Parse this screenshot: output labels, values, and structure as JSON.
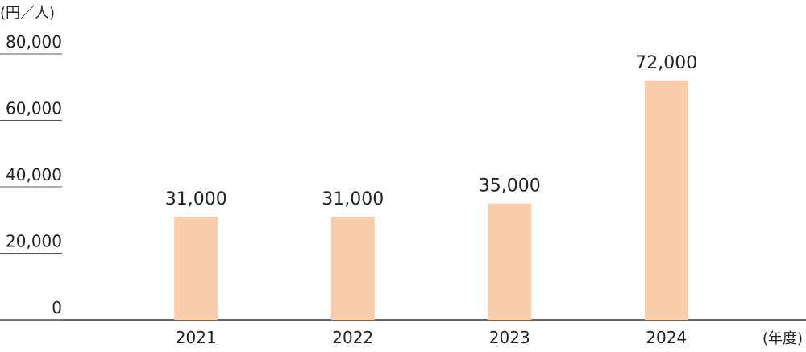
{
  "chart_data": {
    "type": "bar",
    "y_unit": "(円／人)",
    "x_unit": "(年度)",
    "categories": [
      "2021",
      "2022",
      "2023",
      "2024"
    ],
    "values": [
      31000,
      31000,
      35000,
      72000
    ],
    "value_labels": [
      "31,000",
      "31,000",
      "35,000",
      "72,000"
    ],
    "color": "#f9cdac",
    "ylim": [
      0,
      80000
    ],
    "yticks": [
      0,
      {
        "value": 20000,
        "label": "20,000"
      },
      {
        "value": 40000,
        "label": "40,000"
      },
      {
        "value": 60000,
        "label": "60,000"
      },
      {
        "value": 80000,
        "label": "80,000"
      }
    ]
  }
}
